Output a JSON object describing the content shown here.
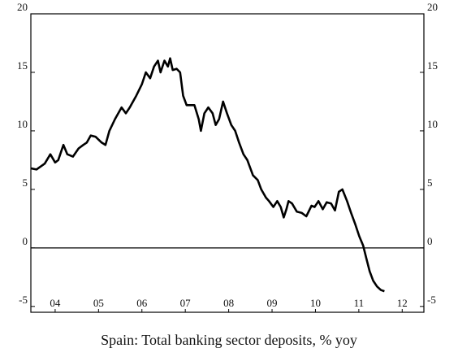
{
  "chart_data": {
    "type": "line",
    "title": "Spain: Total banking sector deposits, % yoy",
    "x": [
      2003.94,
      2004.07,
      2004.26,
      2004.39,
      2004.5,
      2004.57,
      2004.69,
      2004.78,
      2004.91,
      2005.04,
      2005.15,
      2005.23,
      2005.32,
      2005.43,
      2005.57,
      2005.66,
      2005.75,
      2005.88,
      2006.03,
      2006.13,
      2006.22,
      2006.37,
      2006.5,
      2006.59,
      2006.69,
      2006.78,
      2006.87,
      2006.93,
      2007.02,
      2007.1,
      2007.15,
      2007.21,
      2007.3,
      2007.38,
      2007.45,
      2007.53,
      2007.71,
      2007.81,
      2007.86,
      2007.94,
      2008.03,
      2008.13,
      2008.2,
      2008.28,
      2008.37,
      2008.46,
      2008.56,
      2008.65,
      2008.74,
      2008.84,
      2008.93,
      2009.06,
      2009.17,
      2009.25,
      2009.36,
      2009.43,
      2009.53,
      2009.62,
      2009.7,
      2009.77,
      2009.83,
      2009.88,
      2009.96,
      2010.07,
      2010.18,
      2010.29,
      2010.41,
      2010.48,
      2010.57,
      2010.67,
      2010.76,
      2010.86,
      2010.95,
      2011.04,
      2011.12,
      2011.23,
      2011.32,
      2011.42,
      2011.51,
      2011.6,
      2011.68,
      2011.75,
      2011.83,
      2011.92,
      2012.01,
      2012.09
    ],
    "series": [
      {
        "color": "#000000",
        "values": [
          6.8,
          6.7,
          7.2,
          8.0,
          7.3,
          7.5,
          8.8,
          8.0,
          7.8,
          8.5,
          8.8,
          9.0,
          9.6,
          9.5,
          9.0,
          8.8,
          10.0,
          11.0,
          12.0,
          11.5,
          12.0,
          13.0,
          14.0,
          15.0,
          14.5,
          15.5,
          16.0,
          15.0,
          16.0,
          15.5,
          16.2,
          15.2,
          15.3,
          15.0,
          13.0,
          12.2,
          12.2,
          11.0,
          10.0,
          11.5,
          12.0,
          11.5,
          10.5,
          11.0,
          12.5,
          11.5,
          10.5,
          10.0,
          9.0,
          8.0,
          7.5,
          6.2,
          5.8,
          5.0,
          4.3,
          4.0,
          3.5,
          4.0,
          3.5,
          2.6,
          3.3,
          4.0,
          3.8,
          3.1,
          3.0,
          2.7,
          3.6,
          3.5,
          4.0,
          3.3,
          3.9,
          3.8,
          3.2,
          4.8,
          5.0,
          4.0,
          3.0,
          2.0,
          1.0,
          0.2,
          -1.0,
          -2.0,
          -2.8,
          -3.3,
          -3.6,
          -3.7
        ]
      }
    ],
    "xlim": [
      2003.94,
      2013.0
    ],
    "xticks": [
      {
        "value": 2004.5,
        "label": "04"
      },
      {
        "value": 2005.5,
        "label": "05"
      },
      {
        "value": 2006.5,
        "label": "06"
      },
      {
        "value": 2007.5,
        "label": "07"
      },
      {
        "value": 2008.5,
        "label": "08"
      },
      {
        "value": 2009.5,
        "label": "09"
      },
      {
        "value": 2010.5,
        "label": "10"
      },
      {
        "value": 2011.5,
        "label": "11"
      },
      {
        "value": 2012.5,
        "label": "12"
      }
    ],
    "ylim": [
      -5.5,
      20
    ],
    "yticks": [
      -5,
      0,
      5,
      10,
      15,
      20
    ]
  }
}
